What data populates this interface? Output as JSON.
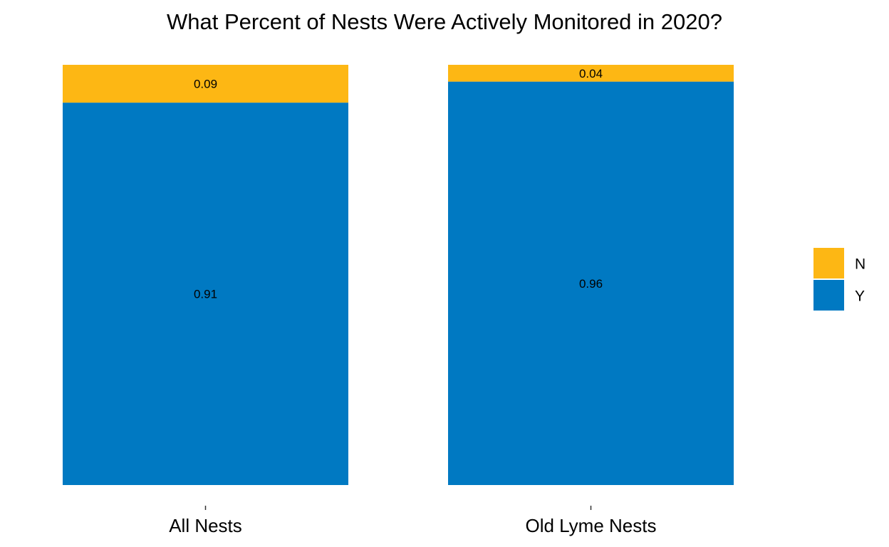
{
  "chart_data": {
    "type": "bar",
    "stacked": true,
    "title": "What Percent of Nests Were Actively Monitored in 2020?",
    "xlabel": "",
    "ylabel": "",
    "ylim": [
      0,
      1
    ],
    "grid": false,
    "categories": [
      "All Nests",
      "Old Lyme Nests"
    ],
    "series": [
      {
        "name": "N",
        "color": "#FDB714",
        "values": [
          0.09,
          0.04
        ],
        "labels": [
          "0.09",
          "0.04"
        ]
      },
      {
        "name": "Y",
        "color": "#0079C2",
        "values": [
          0.91,
          0.96
        ],
        "labels": [
          "0.91",
          "0.96"
        ]
      }
    ],
    "stack_order_top_to_bottom": [
      "N",
      "Y"
    ],
    "legend": {
      "position": "right",
      "entries": [
        "N",
        "Y"
      ]
    }
  }
}
